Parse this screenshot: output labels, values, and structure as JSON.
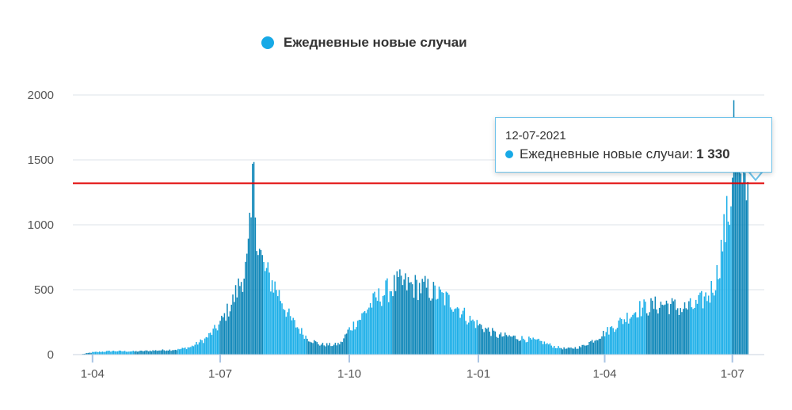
{
  "legend": {
    "label": "Ежедневные новые случаи",
    "color": "#17a9e6"
  },
  "tooltip": {
    "date": "12-07-2021",
    "series_label": "Ежедневные новые случаи:",
    "value": "1 330"
  },
  "colors": {
    "bar_light": "#1aaee8",
    "bar_dark": "#0d86b8",
    "reference_line": "#e00000",
    "grid": "#dde3ea"
  },
  "chart_data": {
    "type": "bar",
    "title": "",
    "legend": [
      "Ежедневные новые случаи"
    ],
    "ylim": [
      0,
      2000
    ],
    "yticks": [
      0,
      500,
      1000,
      1500,
      2000
    ],
    "xticks": [
      "1-04",
      "1-07",
      "1-10",
      "1-01",
      "1-04",
      "1-07"
    ],
    "reference_line": 1320,
    "series": [
      {
        "name": "Ежедневные новые случаи",
        "points": [
          [
            "2020-03-25",
            5
          ],
          [
            "2020-04-01",
            18
          ],
          [
            "2020-04-15",
            28
          ],
          [
            "2020-05-01",
            25
          ],
          [
            "2020-05-15",
            32
          ],
          [
            "2020-06-01",
            40
          ],
          [
            "2020-06-10",
            60
          ],
          [
            "2020-06-20",
            120
          ],
          [
            "2020-06-25",
            170
          ],
          [
            "2020-06-30",
            230
          ],
          [
            "2020-07-05",
            320
          ],
          [
            "2020-07-10",
            420
          ],
          [
            "2020-07-15",
            560
          ],
          [
            "2020-07-20",
            700
          ],
          [
            "2020-07-23",
            1040
          ],
          [
            "2020-07-24",
            1470
          ],
          [
            "2020-07-28",
            870
          ],
          [
            "2020-08-01",
            680
          ],
          [
            "2020-08-05",
            600
          ],
          [
            "2020-08-10",
            520
          ],
          [
            "2020-08-15",
            400
          ],
          [
            "2020-08-20",
            280
          ],
          [
            "2020-09-01",
            130
          ],
          [
            "2020-09-10",
            80
          ],
          [
            "2020-09-20",
            75
          ],
          [
            "2020-09-25",
            90
          ],
          [
            "2020-10-01",
            200
          ],
          [
            "2020-10-10",
            300
          ],
          [
            "2020-10-15",
            380
          ],
          [
            "2020-10-25",
            480
          ],
          [
            "2020-11-05",
            560
          ],
          [
            "2020-11-15",
            540
          ],
          [
            "2020-11-25",
            520
          ],
          [
            "2020-12-05",
            460
          ],
          [
            "2020-12-15",
            400
          ],
          [
            "2020-12-25",
            280
          ],
          [
            "2021-01-05",
            210
          ],
          [
            "2021-01-15",
            150
          ],
          [
            "2021-01-25",
            140
          ],
          [
            "2021-02-05",
            120
          ],
          [
            "2021-02-15",
            100
          ],
          [
            "2021-02-25",
            60
          ],
          [
            "2021-03-05",
            45
          ],
          [
            "2021-03-15",
            60
          ],
          [
            "2021-03-25",
            120
          ],
          [
            "2021-04-05",
            200
          ],
          [
            "2021-04-15",
            280
          ],
          [
            "2021-04-25",
            360
          ],
          [
            "2021-05-05",
            380
          ],
          [
            "2021-05-15",
            400
          ],
          [
            "2021-05-25",
            360
          ],
          [
            "2021-06-05",
            380
          ],
          [
            "2021-06-15",
            480
          ],
          [
            "2021-06-20",
            620
          ],
          [
            "2021-06-25",
            950
          ],
          [
            "2021-06-30",
            1200
          ],
          [
            "2021-07-02",
            1960
          ],
          [
            "2021-07-05",
            1500
          ],
          [
            "2021-07-08",
            1250
          ],
          [
            "2021-07-12",
            1330
          ]
        ]
      }
    ]
  }
}
